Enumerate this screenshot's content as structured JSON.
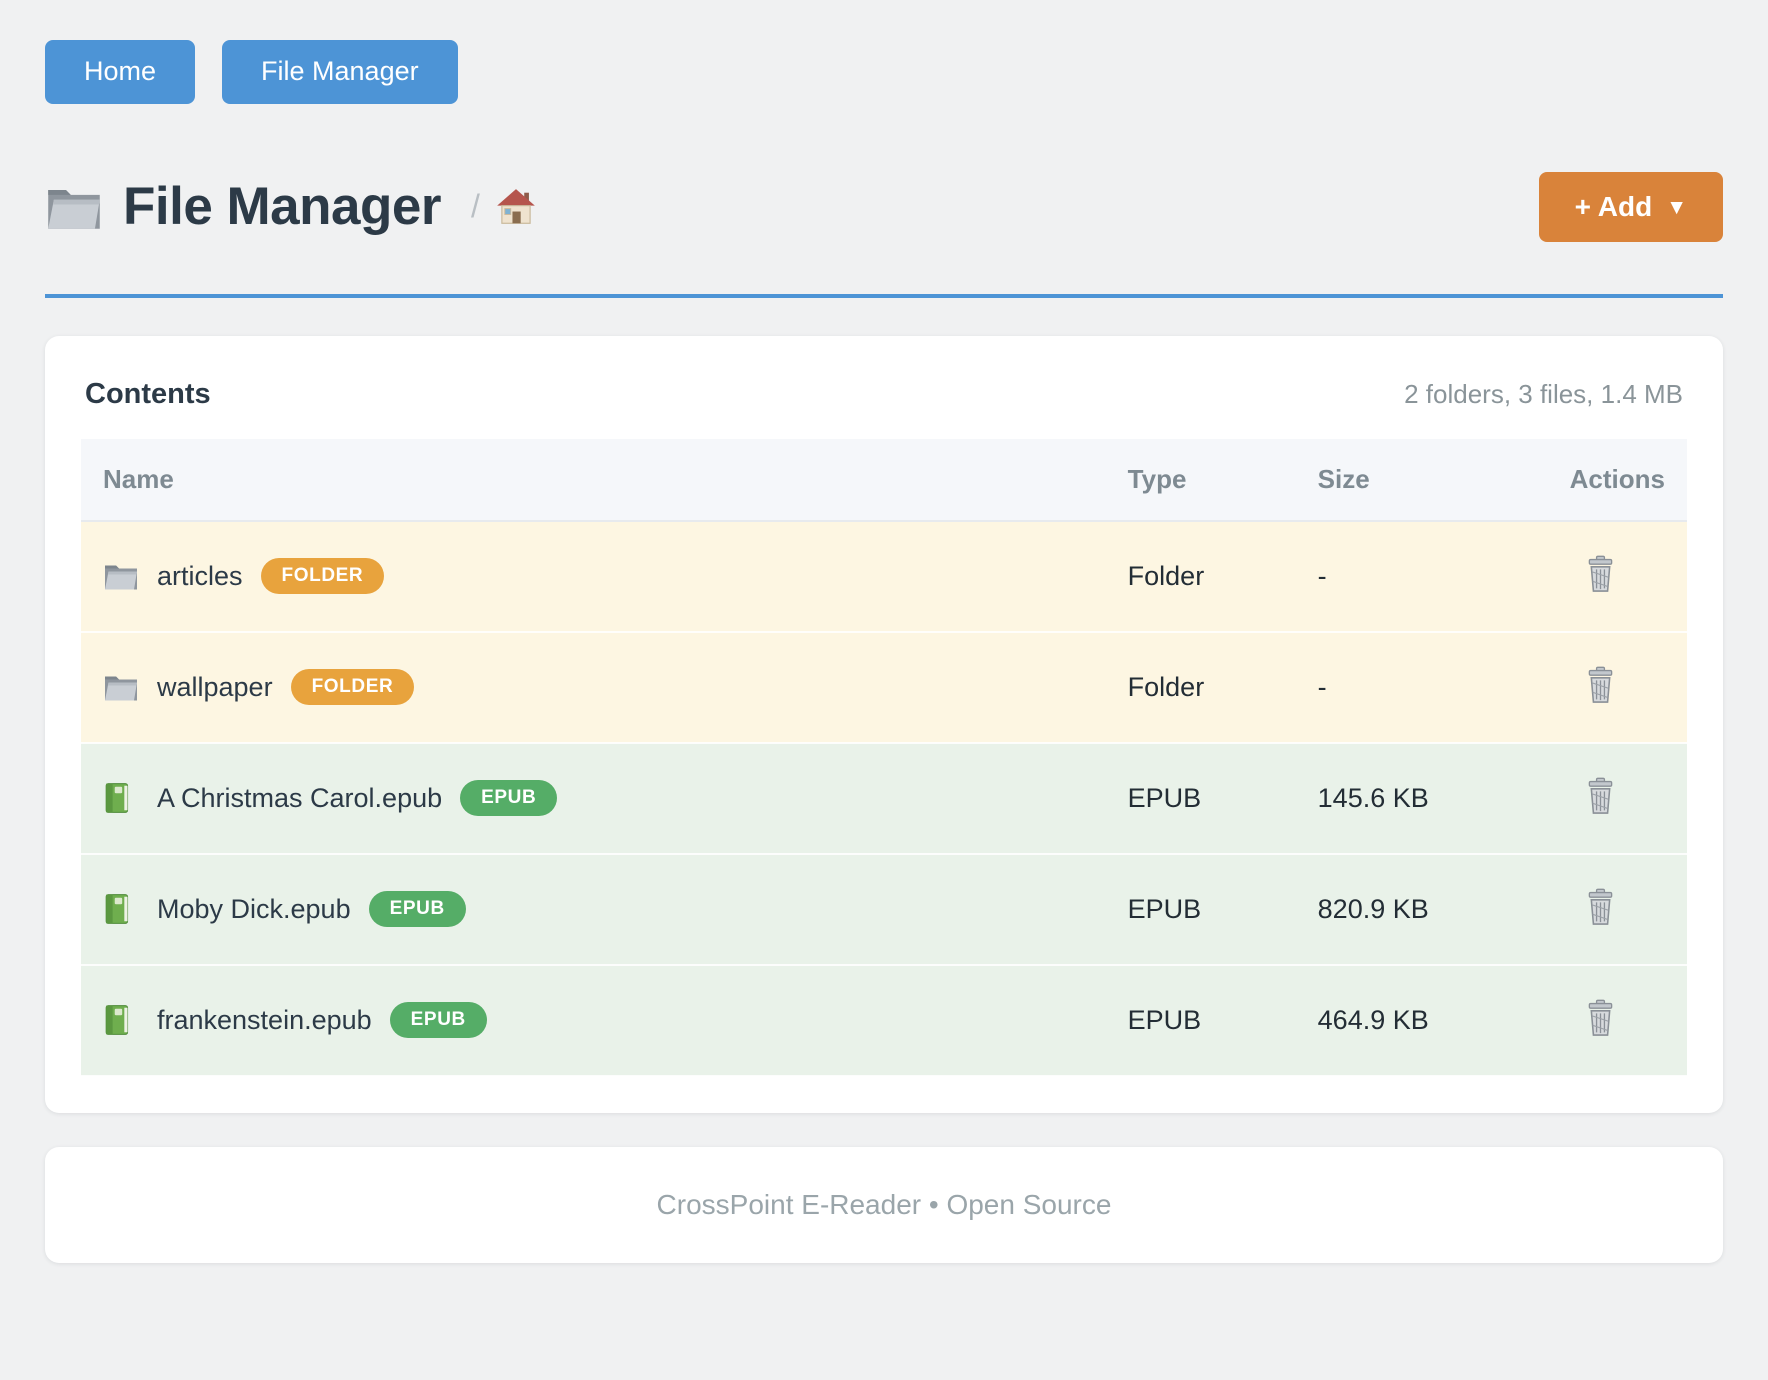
{
  "nav": {
    "buttons": [
      {
        "label": "Home"
      },
      {
        "label": "File Manager"
      }
    ]
  },
  "header": {
    "title": "File Manager",
    "title_icon": "folder-icon",
    "breadcrumb_separator": "/",
    "breadcrumb_home_icon": "house-icon",
    "add_button": {
      "label": "+ Add",
      "caret": "▼"
    }
  },
  "contents_card": {
    "title": "Contents",
    "summary": "2 folders, 3 files, 1.4 MB",
    "table": {
      "columns": [
        "Name",
        "Type",
        "Size",
        "Actions"
      ],
      "action_icon": "trash-icon",
      "rows": [
        {
          "kind": "folder",
          "icon": "folder-icon",
          "name": "articles",
          "badge": "FOLDER",
          "type": "Folder",
          "size": "-"
        },
        {
          "kind": "folder",
          "icon": "folder-icon",
          "name": "wallpaper",
          "badge": "FOLDER",
          "type": "Folder",
          "size": "-"
        },
        {
          "kind": "epub",
          "icon": "book-icon",
          "name": "A Christmas Carol.epub",
          "badge": "EPUB",
          "type": "EPUB",
          "size": "145.6 KB"
        },
        {
          "kind": "epub",
          "icon": "book-icon",
          "name": "Moby Dick.epub",
          "badge": "EPUB",
          "type": "EPUB",
          "size": "820.9 KB"
        },
        {
          "kind": "epub",
          "icon": "book-icon",
          "name": "frankenstein.epub",
          "badge": "EPUB",
          "type": "EPUB",
          "size": "464.9 KB"
        }
      ]
    }
  },
  "footer": {
    "text": "CrossPoint E-Reader • Open Source"
  },
  "colors": {
    "accent_blue": "#4d94d6",
    "accent_orange": "#d9833a",
    "badge_folder": "#e8a33d",
    "badge_epub": "#55ad67",
    "row_folder_bg": "#fdf6e2",
    "row_epub_bg": "#e9f2e9",
    "header_row_bg": "#f5f7fa",
    "page_bg": "#f0f1f2",
    "title_color": "#2c3a47",
    "muted": "#8a9499"
  }
}
